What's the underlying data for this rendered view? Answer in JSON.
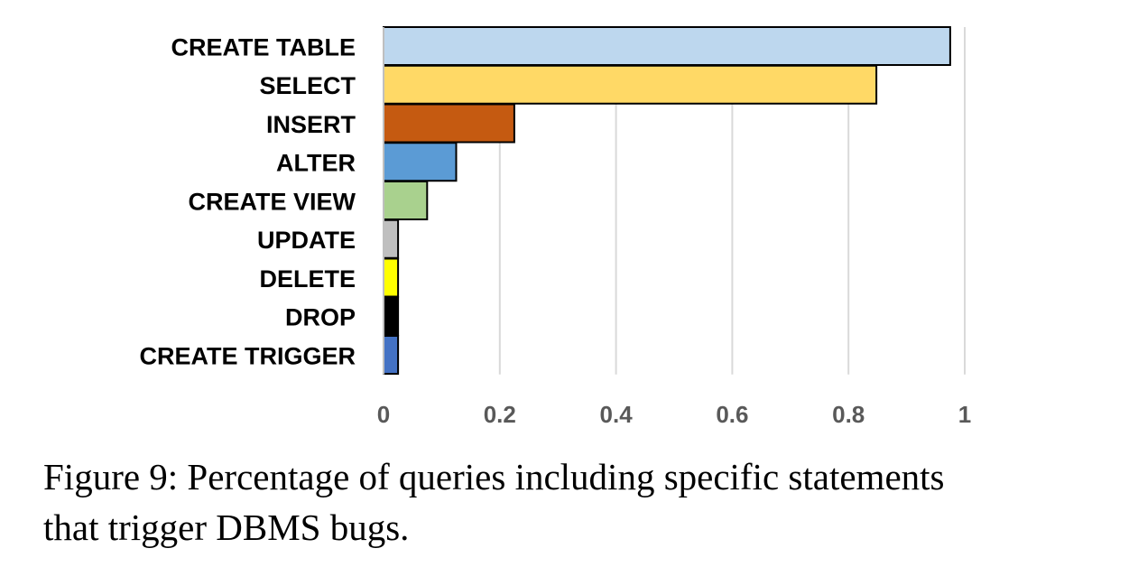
{
  "chart_data": {
    "type": "bar",
    "orientation": "horizontal",
    "categories": [
      "CREATE TABLE",
      "SELECT",
      "INSERT",
      "ALTER",
      "CREATE VIEW",
      "UPDATE",
      "DELETE",
      "DROP",
      "CREATE TRIGGER"
    ],
    "values": [
      0.975,
      0.848,
      0.225,
      0.125,
      0.075,
      0.025,
      0.025,
      0.025,
      0.025
    ],
    "colors": [
      "#bdd7ee",
      "#ffd966",
      "#c55a11",
      "#5b9bd5",
      "#a9d18e",
      "#bfbfbf",
      "#ffff00",
      "#000000",
      "#4472c4"
    ],
    "xlim": [
      0,
      1
    ],
    "xticks": [
      "0",
      "0.2",
      "0.4",
      "0.6",
      "0.8",
      "1"
    ],
    "xtick_values": [
      0,
      0.2,
      0.4,
      0.6,
      0.8,
      1
    ],
    "grid": true,
    "legend": "none"
  },
  "caption": {
    "line1": "Figure 9: Percentage of queries including specific statements",
    "line2": "that trigger DBMS bugs."
  }
}
